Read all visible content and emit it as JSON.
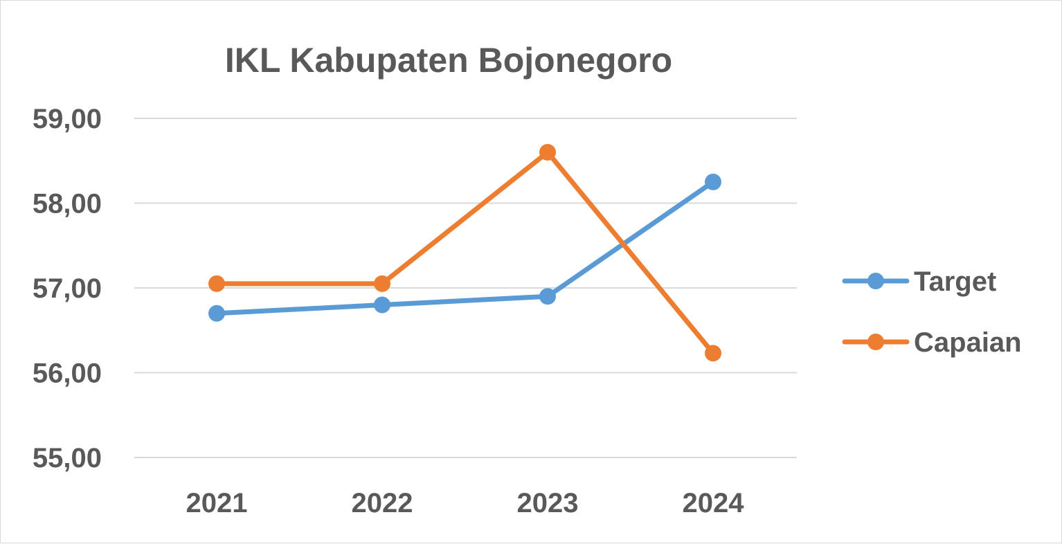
{
  "chart_data": {
    "type": "line",
    "title": "IKL Kabupaten Bojonegoro",
    "xlabel": "",
    "ylabel": "",
    "categories": [
      "2021",
      "2022",
      "2023",
      "2024"
    ],
    "y_ticks": [
      "55,00",
      "56,00",
      "57,00",
      "58,00",
      "59,00"
    ],
    "ylim": [
      55,
      59
    ],
    "grid": true,
    "legend_position": "right",
    "series": [
      {
        "name": "Target",
        "color": "#5b9bd5",
        "values": [
          56.7,
          56.8,
          56.9,
          58.25
        ]
      },
      {
        "name": "Capaian",
        "color": "#ed7d31",
        "values": [
          57.05,
          57.05,
          58.6,
          56.23
        ]
      }
    ]
  }
}
